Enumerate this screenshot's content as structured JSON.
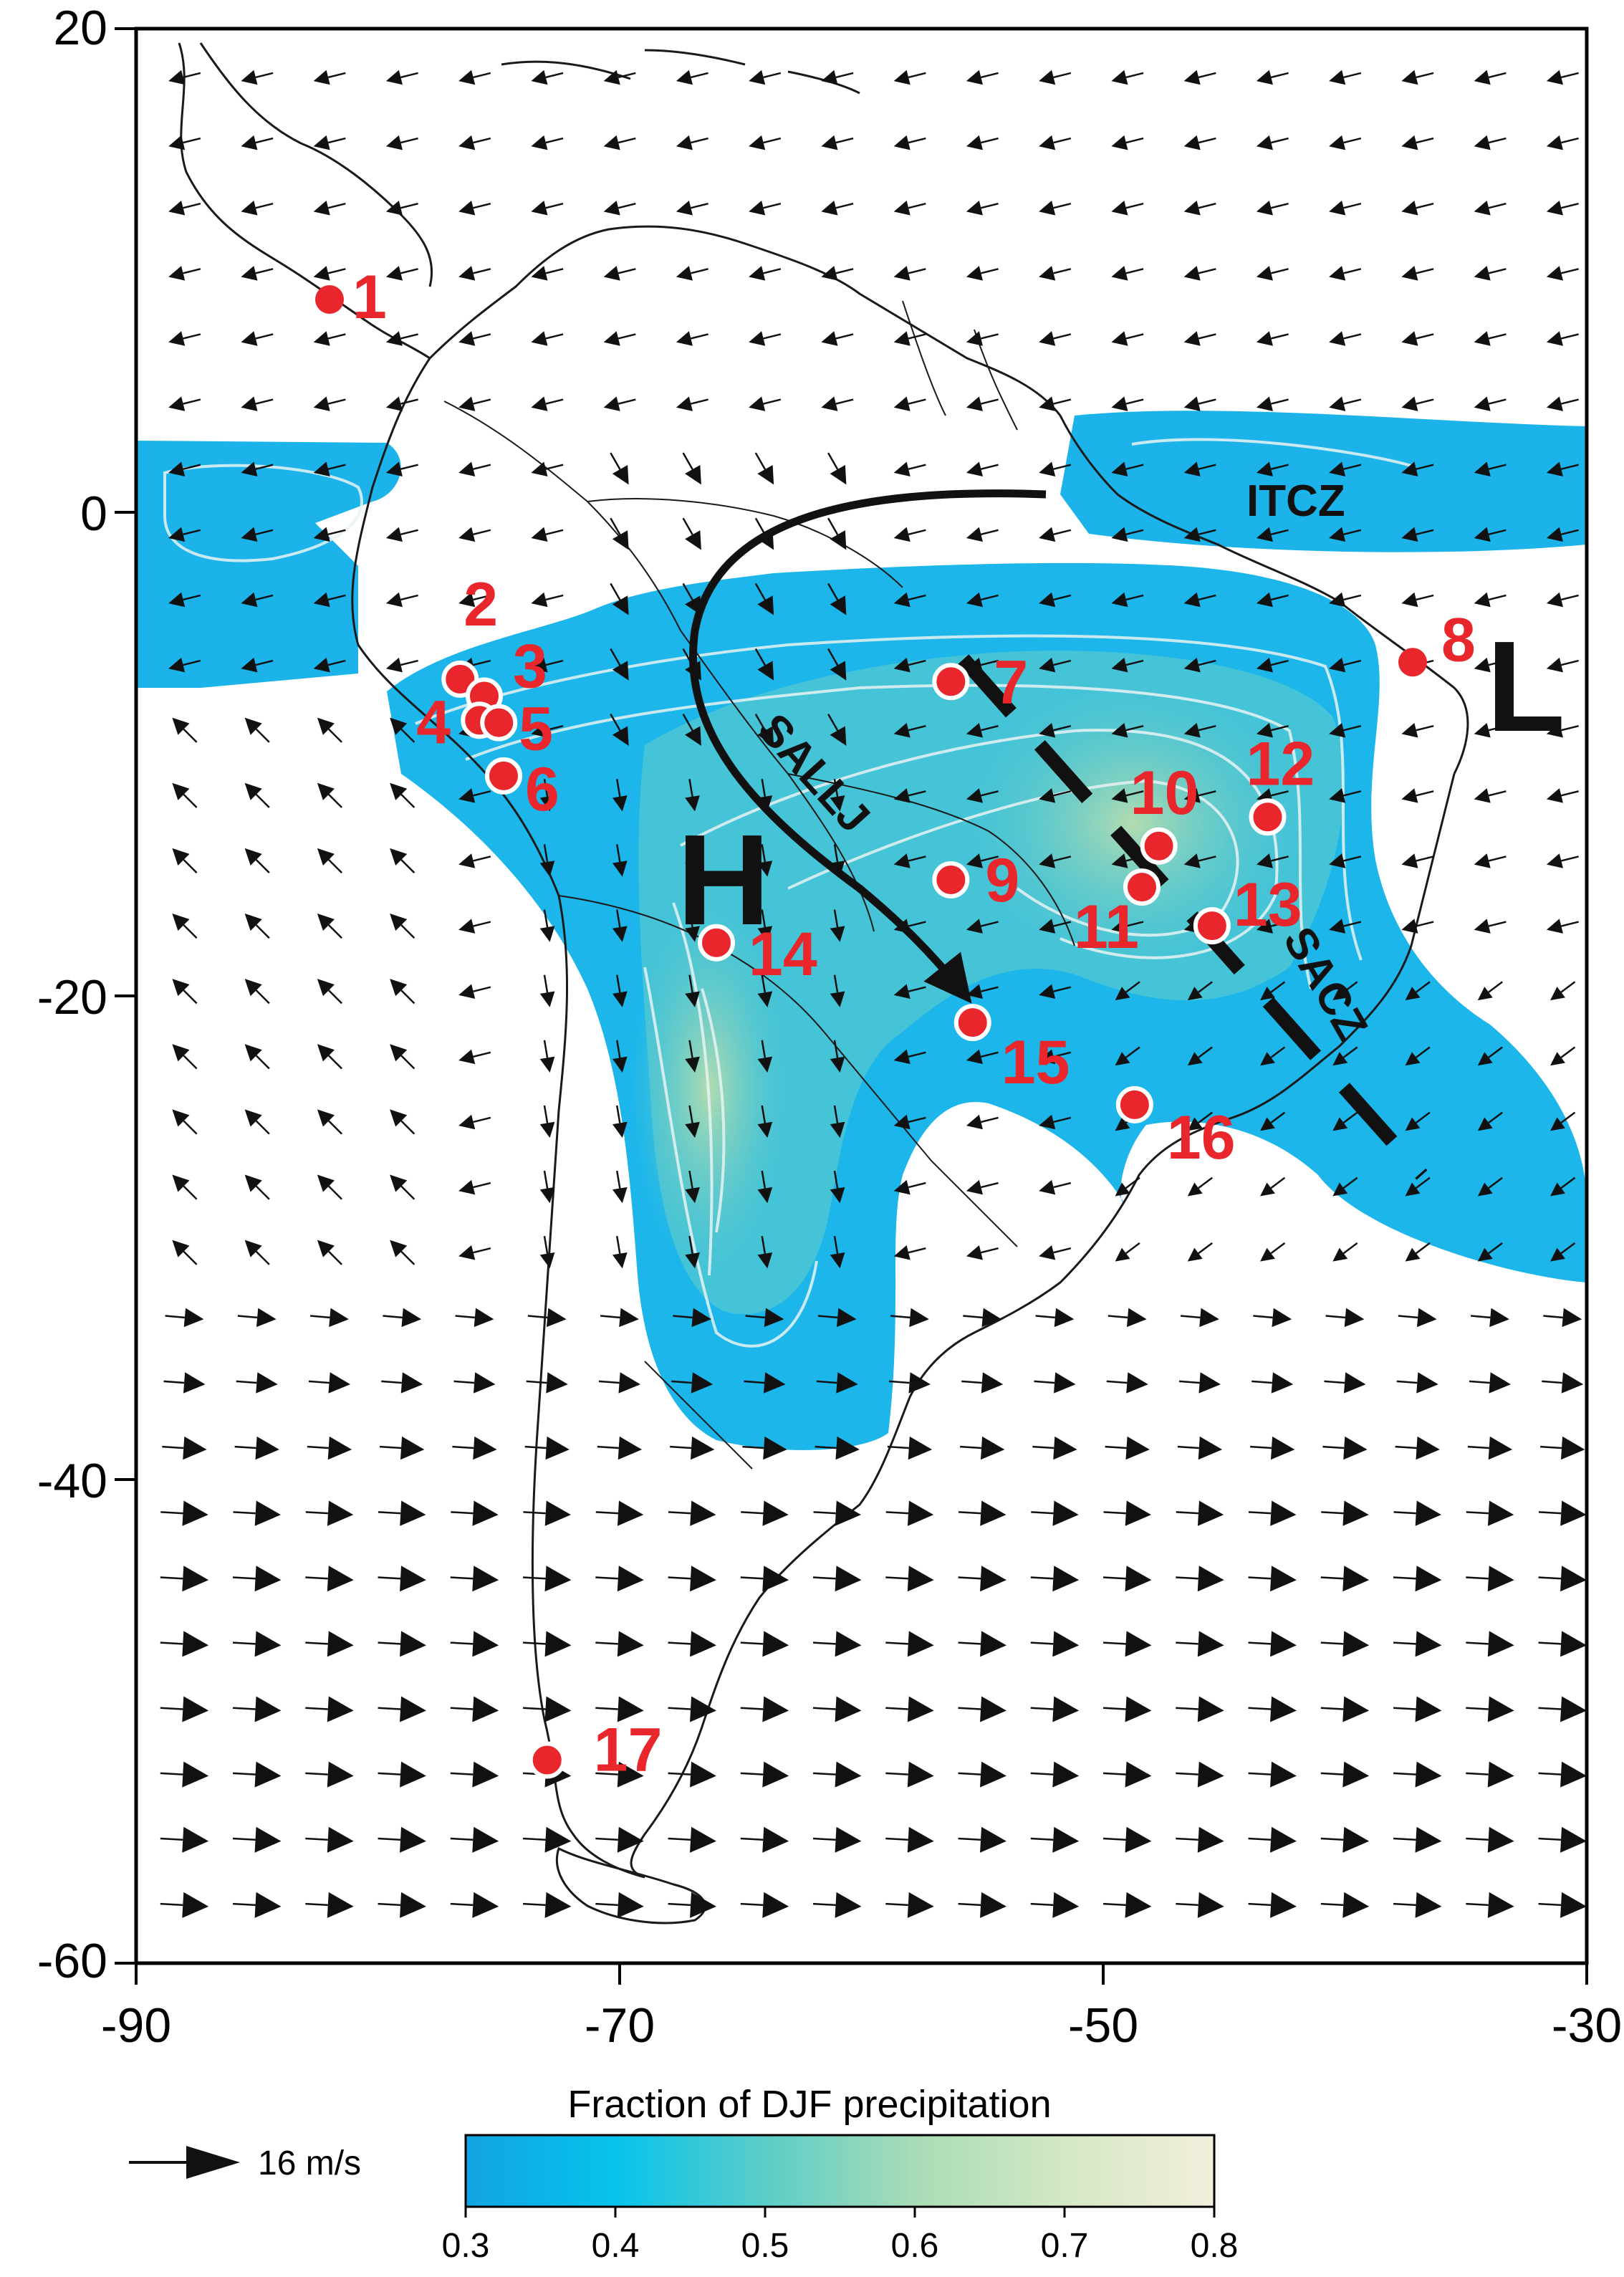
{
  "axes": {
    "x_ticks": [
      {
        "value": -90,
        "label": "-90"
      },
      {
        "value": -70,
        "label": "-70"
      },
      {
        "value": -50,
        "label": "-50"
      },
      {
        "value": -30,
        "label": "-30"
      }
    ],
    "y_ticks": [
      {
        "value": 20,
        "label": "20"
      },
      {
        "value": 0,
        "label": "0"
      },
      {
        "value": -20,
        "label": "-20"
      },
      {
        "value": -40,
        "label": "-40"
      },
      {
        "value": -60,
        "label": "-60"
      }
    ],
    "x_range": [
      -90,
      -30
    ],
    "y_range": [
      -60,
      20
    ]
  },
  "stations": [
    {
      "id": "1",
      "lon": -82.0,
      "lat": 8.8
    },
    {
      "id": "2",
      "lon": -76.6,
      "lat": -6.9
    },
    {
      "id": "3",
      "lon": -75.6,
      "lat": -7.6
    },
    {
      "id": "4",
      "lon": -75.8,
      "lat": -8.6
    },
    {
      "id": "5",
      "lon": -75.0,
      "lat": -8.7
    },
    {
      "id": "6",
      "lon": -74.8,
      "lat": -10.9
    },
    {
      "id": "7",
      "lon": -56.3,
      "lat": -7.0
    },
    {
      "id": "8",
      "lon": -37.2,
      "lat": -6.2
    },
    {
      "id": "9",
      "lon": -56.3,
      "lat": -15.2
    },
    {
      "id": "10",
      "lon": -47.7,
      "lat": -13.8
    },
    {
      "id": "11",
      "lon": -48.4,
      "lat": -15.5
    },
    {
      "id": "12",
      "lon": -43.2,
      "lat": -12.6
    },
    {
      "id": "13",
      "lon": -45.5,
      "lat": -17.1
    },
    {
      "id": "14",
      "lon": -66.0,
      "lat": -17.8
    },
    {
      "id": "15",
      "lon": -55.4,
      "lat": -21.1
    },
    {
      "id": "16",
      "lon": -48.7,
      "lat": -24.5
    },
    {
      "id": "17",
      "lon": -73.0,
      "lat": -51.6
    }
  ],
  "features": {
    "itcz": "ITCZ",
    "sallj": "SALLJ",
    "sacz": "SACZ",
    "high": "H",
    "low": "L"
  },
  "legend": {
    "vector_label": "16 m/s",
    "colorbar_title": "Fraction of DJF precipitation",
    "colorbar_ticks": [
      "0.3",
      "0.4",
      "0.5",
      "0.6",
      "0.7",
      "0.8"
    ],
    "colorbar_range": [
      0.3,
      0.8
    ],
    "colors": [
      "#12a4e2",
      "#06c3ec",
      "#5ccdc8",
      "#a8dcb6",
      "#d4e8c4",
      "#f2eedc"
    ]
  }
}
